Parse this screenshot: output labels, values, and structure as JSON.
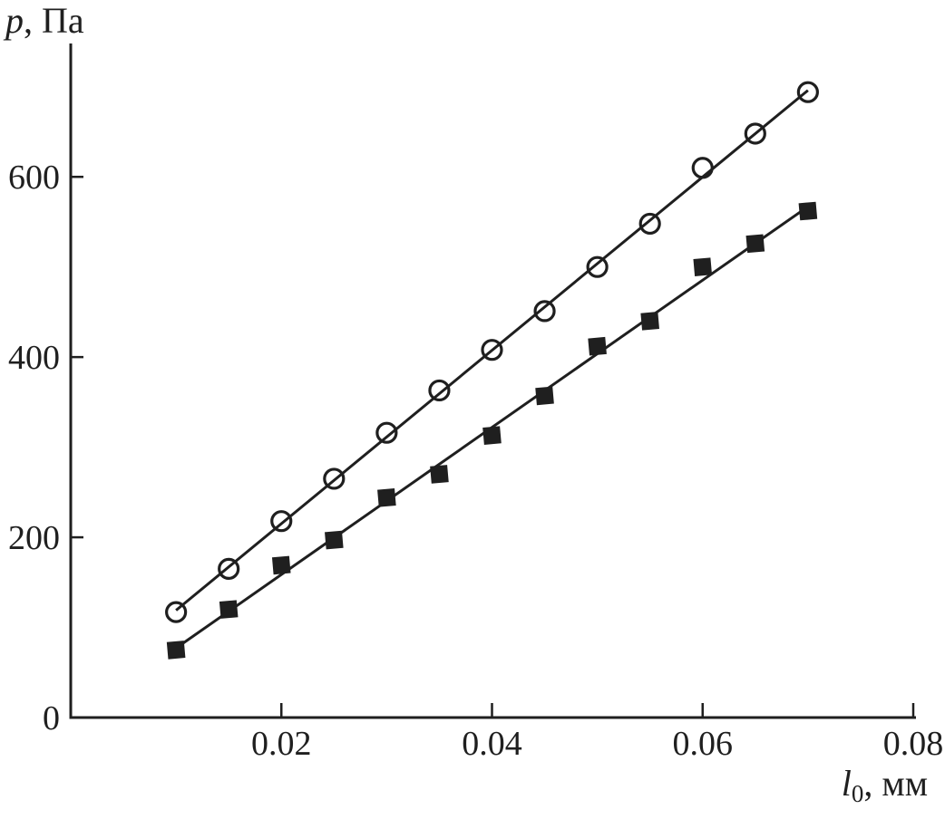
{
  "figure": {
    "background": "#ffffff",
    "ink_color": "#1f1f1f"
  },
  "chart_data": {
    "type": "scatter",
    "title": "",
    "grid": false,
    "legend": "none",
    "ylabel": {
      "variable": "p",
      "rest": ", Па"
    },
    "xlabel": {
      "variable": "l",
      "subscript": "0",
      "rest": ", мм"
    },
    "xlim": [
      0,
      0.08
    ],
    "ylim": [
      0,
      748
    ],
    "xticks": {
      "values": [
        0.02,
        0.04,
        0.06,
        0.08
      ],
      "labels": [
        "0.02",
        "0.04",
        "0.06",
        "0.08"
      ]
    },
    "yticks": {
      "values": [
        0,
        200,
        400,
        600
      ],
      "labels": [
        "0",
        "200",
        "400",
        "600"
      ]
    },
    "x_values": [
      0.01,
      0.015,
      0.02,
      0.025,
      0.03,
      0.035,
      0.04,
      0.045,
      0.05,
      0.055,
      0.06,
      0.065,
      0.07
    ],
    "series": [
      {
        "name": "open-circles",
        "marker": "circle",
        "fill": "none",
        "y": [
          117,
          165,
          218,
          265,
          316,
          363,
          408,
          451,
          500,
          548,
          610,
          648,
          694
        ],
        "fit_line": {
          "x": [
            0.01,
            0.07
          ],
          "y": [
            119,
            696
          ]
        }
      },
      {
        "name": "filled-squares",
        "marker": "square",
        "fill": "solid",
        "y": [
          75,
          120,
          169,
          197,
          244,
          270,
          313,
          357,
          412,
          440,
          500,
          526,
          562
        ],
        "fit_line": {
          "x": [
            0.01,
            0.07
          ],
          "y": [
            77,
            567
          ]
        }
      }
    ]
  }
}
